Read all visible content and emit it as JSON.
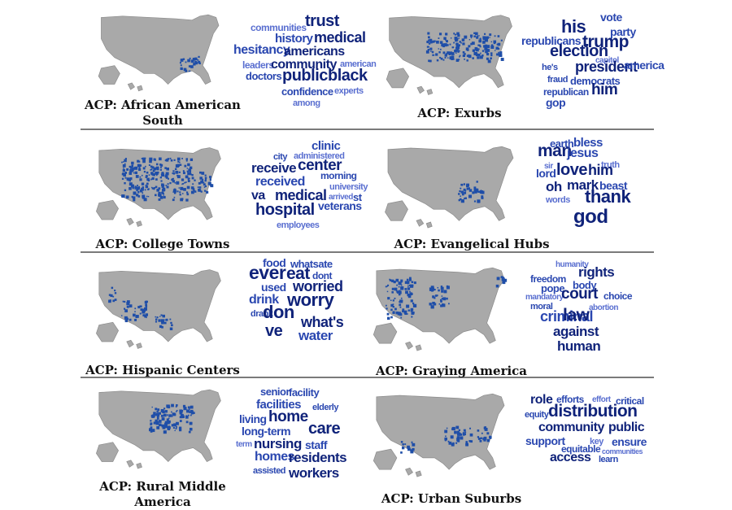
{
  "colors": {
    "map_land": "#a9a9a9",
    "map_border": "#8c8c8c",
    "county": "#1f4ea8",
    "word_dark": "#10237a",
    "word_mid": "#2a47b0",
    "word_light": "#5a6fd0"
  },
  "panels": [
    {
      "caption": "ACP: African American South",
      "words": [
        "trust",
        "communities",
        "history",
        "medical",
        "hesitancy",
        "americans",
        "leaders",
        "community",
        "american",
        "doctors",
        "public",
        "black",
        "confidence",
        "experts",
        "among"
      ]
    },
    {
      "caption": "ACP: Exurbs",
      "words": [
        "vote",
        "his",
        "party",
        "republicans",
        "trump",
        "election",
        "capitol",
        "he's",
        "president",
        "america",
        "fraud",
        "democrats",
        "republican",
        "him",
        "gop"
      ]
    },
    {
      "caption": "ACP: College Towns",
      "words": [
        "clinic",
        "city",
        "administered",
        "receive",
        "center",
        "morning",
        "received",
        "university",
        "va",
        "medical",
        "arrived",
        "st",
        "hospital",
        "veterans",
        "employees"
      ]
    },
    {
      "caption": "ACP: Evangelical Hubs",
      "words": [
        "earth",
        "bless",
        "man",
        "jesus",
        "sir",
        "truth",
        "lord",
        "love",
        "him",
        "oh",
        "mark",
        "beast",
        "words",
        "thank",
        "god"
      ]
    },
    {
      "caption": "ACP: Hispanic Centers",
      "words": [
        "food",
        "whatsate",
        "ever",
        "eat",
        "dont",
        "used",
        "worried",
        "drink",
        "worry",
        "drank",
        "don",
        "what's",
        "ve",
        "water"
      ]
    },
    {
      "caption": "ACP: Graying America",
      "words": [
        "humanity",
        "rights",
        "freedom",
        "pope",
        "body",
        "mandatory",
        "court",
        "choice",
        "moral",
        "abortion",
        "criminal",
        "law",
        "against",
        "human",
        "forced"
      ]
    },
    {
      "caption": "ACP: Rural Middle America",
      "words": [
        "senior",
        "facility",
        "facilities",
        "elderly",
        "living",
        "home",
        "long-term",
        "care",
        "term",
        "nursing",
        "staff",
        "homes",
        "residents",
        "assisted",
        "workers"
      ]
    },
    {
      "caption": "ACP: Urban Suburbs",
      "words": [
        "role",
        "efforts",
        "effort",
        "critical",
        "equity",
        "distribution",
        "community",
        "public",
        "support",
        "key",
        "ensure",
        "equitable",
        "communities",
        "access",
        "learn"
      ]
    }
  ]
}
